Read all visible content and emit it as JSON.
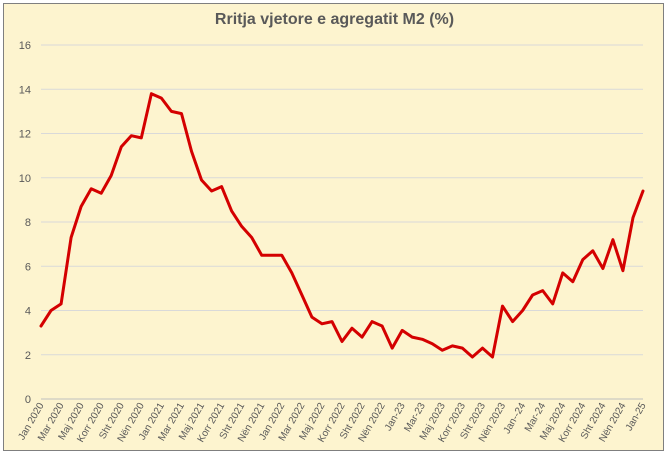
{
  "chart_data": {
    "type": "line",
    "title": "Rritja vjetore e agregatit M2 (%)",
    "xlabel": "",
    "ylabel": "",
    "ylim": [
      0,
      16
    ],
    "yticks": [
      0,
      2,
      4,
      6,
      8,
      10,
      12,
      14,
      16
    ],
    "grid": "horizontal",
    "legend": "none",
    "line_color": "#d40000",
    "x_tick_labels": [
      "Jan 2020",
      "Mar 2020",
      "Maj 2020",
      "Korr 2020",
      "Sht 2020",
      "Nën 2020",
      "Jan 2021",
      "Mar 2021",
      "Maj 2021",
      "Korr 2021",
      "Sht 2021",
      "Nën 2021",
      "Jan 2022",
      "Mar 2022",
      "Maj 2022",
      "Korr 2022",
      "Sht 2022",
      "Nën 2022",
      "Jan-23",
      "Mar-23",
      "Maj 2023",
      "Korr 2023",
      "Sht 2023",
      "Nën 2023",
      "Jan--24",
      "Mar-24",
      "Maj 2024",
      "Korr 2024",
      "Sht 2024",
      "Nën 2024",
      "Jan-25"
    ],
    "series": [
      {
        "values": [
          3.3,
          4.0,
          4.3,
          7.3,
          8.7,
          9.5,
          9.3,
          10.1,
          11.4,
          11.9,
          11.8,
          13.8,
          13.6,
          13.0,
          12.9,
          11.2,
          9.9,
          9.4,
          9.6,
          8.5,
          7.8,
          7.3,
          6.5,
          6.5,
          6.5,
          5.7,
          4.7,
          3.7,
          3.4,
          3.5,
          2.6,
          3.2,
          2.8,
          3.5,
          3.3,
          2.3,
          3.1,
          2.8,
          2.7,
          2.5,
          2.2,
          2.4,
          2.3,
          1.9,
          2.3,
          1.9,
          4.2,
          3.5,
          4.0,
          4.7,
          4.9,
          4.3,
          5.7,
          5.3,
          6.3,
          6.7,
          5.9,
          7.2,
          5.8,
          8.2,
          9.4
        ]
      }
    ]
  }
}
